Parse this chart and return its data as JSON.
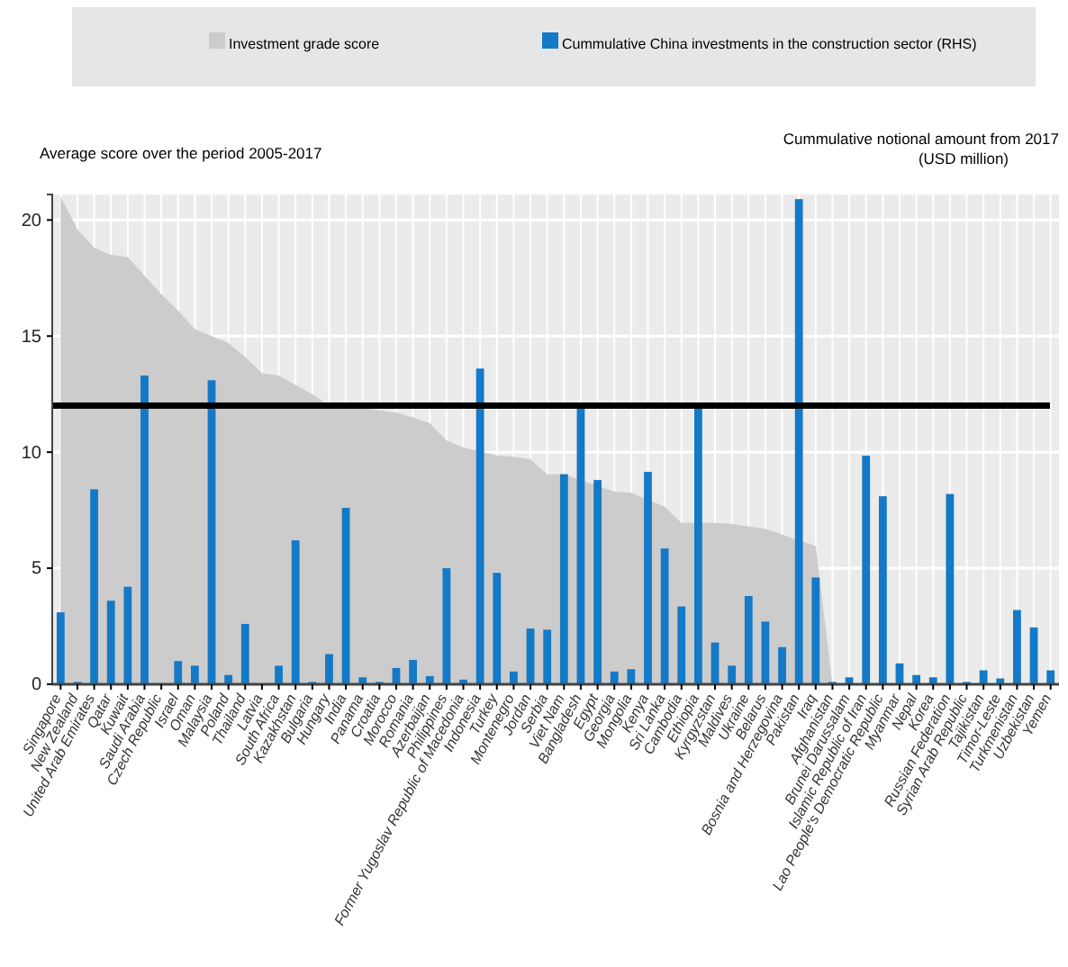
{
  "chart_data": {
    "type": "bar",
    "ylabel": "Average score  over the period 2005-2017",
    "y2label": "Cummulative notional amount  from 2017 (USD million)",
    "categories": [
      "Singapore",
      "New Zealand",
      "United Arab Emirates",
      "Qatar",
      "Kuwait",
      "Saudi Arabia",
      "Czech Republic",
      "Israel",
      "Oman",
      "Malaysia",
      "Poland",
      "Thailand",
      "Latvia",
      "South Africa",
      "Kazakhstan",
      "Bulgaria",
      "Hungary",
      "India",
      "Panama",
      "Croatia",
      "Morocco",
      "Romania",
      "Azerbaijan",
      "Philippines",
      "Former Yugoslav Republic of Macedonia",
      "Indonesia",
      "Turkey",
      "Montenegro",
      "Jordan",
      "Serbia",
      "Viet Nam",
      "Bangladesh",
      "Egypt",
      "Georgia",
      "Mongolia",
      "Kenya",
      "Sri Lanka",
      "Cambodia",
      "Ethiopia",
      "Kyrgyzstan",
      "Maldives",
      "Ukraine",
      "Belarus",
      "Bosnia and Herzegovina",
      "Pakistan",
      "Iraq",
      "Afghanistan",
      "Brunei Darussalam",
      "Islamic Republic of Iran",
      "Lao People's Democratic Republic",
      "Myanmar",
      "Nepal",
      "Korea",
      "Russian Federation",
      "Syrian Arab Republic",
      "Tajikistan",
      "Timor-Leste",
      "Turkmenistan",
      "Uzbekistan",
      "Yemen"
    ],
    "series": [
      {
        "name": "Investment grade score",
        "type": "area",
        "color": "#cccccc",
        "values": [
          21,
          19.6,
          18.8,
          18.5,
          18.4,
          17.6,
          16.8,
          16.1,
          15.3,
          15,
          14.7,
          14.1,
          13.4,
          13.3,
          12.9,
          12.5,
          12,
          11.95,
          11.9,
          11.8,
          11.7,
          11.5,
          11.25,
          10.5,
          10.2,
          null,
          9.85,
          9.8,
          9.7,
          9.05,
          9.05,
          null,
          null,
          8.3,
          8.25,
          null,
          7.65,
          6.95,
          null,
          6.95,
          6.9,
          6.8,
          6.7,
          6.45,
          null,
          5.95,
          0,
          0,
          0,
          0,
          0,
          0,
          0,
          0,
          0,
          0,
          0,
          0,
          0,
          0
        ]
      },
      {
        "name": "Cummulative China investments in the construction sector (RHS)",
        "color": "#1479c6",
        "values": [
          3.1,
          0.1,
          8.4,
          3.6,
          4.2,
          13.3,
          0,
          1,
          0.8,
          13.1,
          0.4,
          2.6,
          0,
          0.8,
          6.2,
          0.1,
          1.3,
          7.6,
          0.3,
          0.1,
          0.7,
          1.05,
          0.35,
          5,
          0.2,
          13.6,
          4.8,
          0.55,
          2.4,
          2.35,
          9.05,
          11.9,
          8.8,
          0.55,
          0.65,
          9.15,
          5.85,
          3.35,
          11.9,
          1.8,
          0.8,
          3.8,
          2.7,
          1.6,
          20.9,
          4.6,
          0.1,
          0.3,
          9.85,
          8.1,
          0.9,
          0.4,
          0.3,
          8.2,
          0.1,
          0.6,
          0.25,
          3.2,
          2.45,
          0.6
        ]
      }
    ],
    "ylim": [
      0,
      21.1
    ],
    "yticks": [
      0,
      5,
      10,
      15,
      20
    ],
    "grid": true,
    "legend": "top",
    "ref_lines": [
      {
        "axis": "y",
        "value": 12,
        "color": "#000000"
      }
    ]
  }
}
